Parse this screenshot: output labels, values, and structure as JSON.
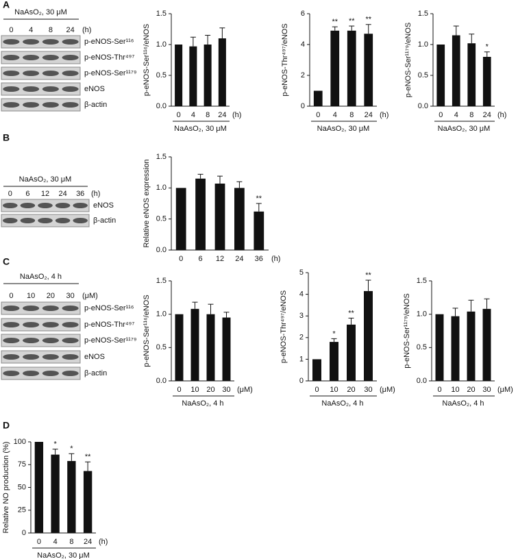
{
  "panel_labels": [
    "A",
    "B",
    "C",
    "D"
  ],
  "blots": [
    {
      "group_label": "NaAsO₂, 30 μM",
      "lanes": [
        "0",
        "4",
        "8",
        "24"
      ],
      "unit": "(h)",
      "rows": [
        "p-eNOS-Ser¹¹⁶",
        "p-eNOS-Thr⁴⁹⁷",
        "p-eNOS-Ser¹¹⁷⁹",
        "eNOS",
        "β-actin"
      ]
    },
    {
      "group_label": "NaAsO₂, 30 μM",
      "lanes": [
        "0",
        "6",
        "12",
        "24",
        "36"
      ],
      "unit": "(h)",
      "rows": [
        "eNOS",
        "β-actin"
      ]
    },
    {
      "group_label": "NaAsO₂, 4 h",
      "lanes": [
        "0",
        "10",
        "20",
        "30"
      ],
      "unit": "(μM)",
      "rows": [
        "p-eNOS-Ser¹¹⁶",
        "p-eNOS-Thr⁴⁹⁷",
        "p-eNOS-Ser¹¹⁷⁹",
        "eNOS",
        "β-actin"
      ]
    }
  ],
  "chart_data": [
    {
      "type": "bar",
      "ylabel": "p-eNOS-Ser¹¹⁶/eNOS",
      "categories": [
        "0",
        "4",
        "8",
        "24"
      ],
      "xunit": "(h)",
      "group_label": "NaAsO₂, 30 μM",
      "values": [
        1.0,
        0.97,
        1.0,
        1.1
      ],
      "errors": [
        0,
        0.15,
        0.15,
        0.17
      ],
      "significance": [
        null,
        null,
        null,
        null
      ],
      "color": "#111111",
      "ylim": [
        0,
        1.5
      ],
      "yticks": [
        {
          "value": 0,
          "label": "0.0"
        },
        0.5,
        {
          "value": 1,
          "label": "1.0"
        },
        1.5
      ]
    },
    {
      "type": "bar",
      "ylabel": "p-eNOS-Thr⁴⁹⁷/eNOS",
      "categories": [
        "0",
        "4",
        "8",
        "24"
      ],
      "xunit": "(h)",
      "group_label": "NaAsO₂, 30 μM",
      "values": [
        1.0,
        4.9,
        4.9,
        4.7
      ],
      "errors": [
        0,
        0.25,
        0.3,
        0.6
      ],
      "significance": [
        null,
        "**",
        "**",
        "**"
      ],
      "color": "#111111",
      "ylim": [
        0,
        6
      ],
      "yticks": [
        0,
        2,
        4,
        6
      ]
    },
    {
      "type": "bar",
      "ylabel": "p-eNOS-Ser¹¹⁷⁹/eNOS",
      "categories": [
        "0",
        "4",
        "8",
        "24"
      ],
      "xunit": "(h)",
      "group_label": "NaAsO₂, 30 μM",
      "values": [
        1.0,
        1.15,
        1.02,
        0.8
      ],
      "errors": [
        0,
        0.15,
        0.15,
        0.08
      ],
      "significance": [
        null,
        null,
        null,
        "*"
      ],
      "color": "#111111",
      "ylim": [
        0,
        1.5
      ],
      "yticks": [
        {
          "value": 0,
          "label": "0.0"
        },
        0.5,
        {
          "value": 1,
          "label": "1.0"
        },
        1.5
      ]
    },
    {
      "type": "bar",
      "ylabel": "Relative eNOS expression",
      "categories": [
        "0",
        "6",
        "12",
        "24",
        "36"
      ],
      "xunit": "(h)",
      "group_label": null,
      "values": [
        1.0,
        1.15,
        1.07,
        1.0,
        0.62
      ],
      "errors": [
        0,
        0.07,
        0.12,
        0.1,
        0.13
      ],
      "significance": [
        null,
        null,
        null,
        null,
        "**"
      ],
      "color": "#111111",
      "ylim": [
        0,
        1.5
      ],
      "yticks": [
        {
          "value": 0,
          "label": "0.0"
        },
        0.5,
        {
          "value": 1,
          "label": "1.0"
        },
        1.5
      ]
    },
    {
      "type": "bar",
      "ylabel": "p-eNOS-Ser¹¹⁶/eNOS",
      "categories": [
        "0",
        "10",
        "20",
        "30"
      ],
      "xunit": "(μM)",
      "group_label": "NaAsO₂, 4 h",
      "values": [
        1.0,
        1.08,
        1.0,
        0.95
      ],
      "errors": [
        0,
        0.1,
        0.15,
        0.08
      ],
      "significance": [
        null,
        null,
        null,
        null
      ],
      "color": "#111111",
      "ylim": [
        0,
        1.5
      ],
      "yticks": [
        {
          "value": 0,
          "label": "0.0"
        },
        0.5,
        {
          "value": 1,
          "label": "1.0"
        },
        1.5
      ]
    },
    {
      "type": "bar",
      "ylabel": "p-eNOS-Thr⁴⁹⁷/eNOS",
      "categories": [
        "0",
        "10",
        "20",
        "30"
      ],
      "xunit": "(μM)",
      "group_label": "NaAsO₂, 4 h",
      "values": [
        1.0,
        1.8,
        2.6,
        4.15
      ],
      "errors": [
        0,
        0.15,
        0.3,
        0.5
      ],
      "significance": [
        null,
        "*",
        "**",
        "**"
      ],
      "color": "#111111",
      "ylim": [
        0,
        5
      ],
      "yticks": [
        0,
        1,
        2,
        3,
        4,
        5
      ]
    },
    {
      "type": "bar",
      "ylabel": "p-eNOS-Ser¹¹⁷⁹/eNOS",
      "categories": [
        "0",
        "10",
        "20",
        "30"
      ],
      "xunit": "(μM)",
      "group_label": "NaAsO₂, 4 h",
      "values": [
        1.0,
        0.97,
        1.04,
        1.08
      ],
      "errors": [
        0,
        0.12,
        0.17,
        0.15
      ],
      "significance": [
        null,
        null,
        null,
        null
      ],
      "color": "#111111",
      "ylim": [
        0,
        1.5
      ],
      "yticks": [
        {
          "value": 0,
          "label": "0.0"
        },
        0.5,
        {
          "value": 1,
          "label": "1.0"
        },
        1.5
      ]
    },
    {
      "type": "bar",
      "ylabel": "Relative NO production (%)",
      "categories": [
        "0",
        "4",
        "8",
        "24"
      ],
      "xunit": "(h)",
      "group_label": "NaAsO₂, 30 μM",
      "values": [
        100,
        86,
        79,
        68
      ],
      "errors": [
        0,
        6,
        8,
        10
      ],
      "significance": [
        null,
        "*",
        "*",
        "**"
      ],
      "color": "#111111",
      "ylim": [
        0,
        100
      ],
      "yticks": [
        0,
        25,
        50,
        75,
        100
      ]
    }
  ]
}
